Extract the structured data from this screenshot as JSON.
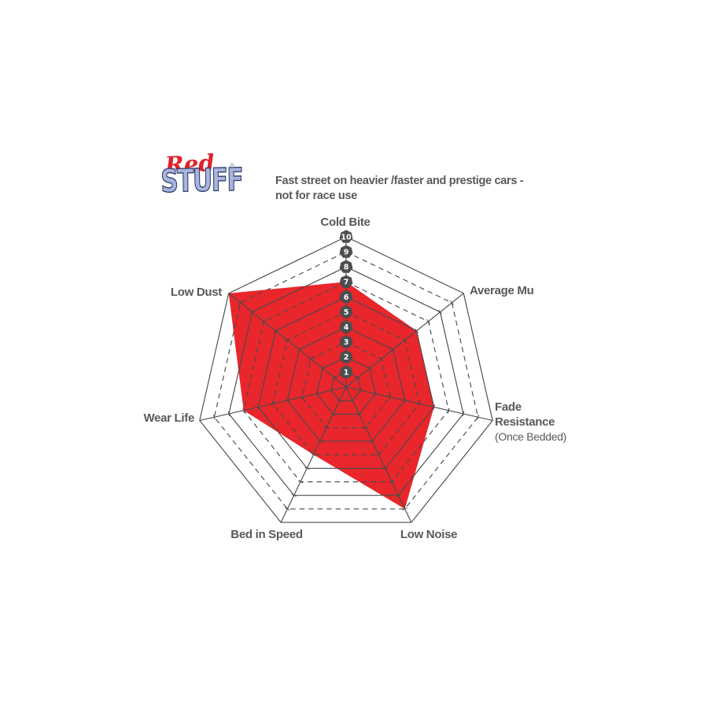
{
  "logo": {
    "word1": "Red",
    "registered": "®",
    "word2": "STUFF"
  },
  "header": {
    "tagline_line1": "Fast street on heavier /faster and prestige cars -",
    "tagline_line2": "not for race use"
  },
  "chart_data": {
    "type": "radar",
    "title": "RedStuff brake pad performance profile",
    "categories": [
      "Cold Bite",
      "Average Mu",
      "Fade Resistance (Once Bedded)",
      "Low Noise",
      "Bed in Speed",
      "Wear Life",
      "Low Dust"
    ],
    "values": [
      7,
      6,
      6,
      9,
      5,
      7,
      10
    ],
    "series": [
      {
        "name": "RedStuff",
        "values": [
          7,
          6,
          6,
          9,
          5,
          7,
          10
        ]
      }
    ],
    "scale": {
      "min": 1,
      "max": 10,
      "ticks": [
        "1",
        "2",
        "3",
        "4",
        "5",
        "6",
        "7",
        "8",
        "9",
        "10"
      ]
    },
    "axis_label_display": {
      "cold_bite": "Cold Bite",
      "average_mu": "Average Mu",
      "fade_1": "Fade",
      "fade_2": "Resistance",
      "fade_3": "(Once Bedded)",
      "low_noise": "Low Noise",
      "bed_in_speed": "Bed in Speed",
      "wear_life": "Wear Life",
      "low_dust": "Low Dust"
    },
    "style": {
      "series_fill": "#e8262b",
      "grid_line": "#4a4b4d",
      "badge_fill": "#4c4d4f",
      "badge_text": "#ffffff",
      "label_color": "#58595b"
    },
    "layout": {
      "axes_count": 7,
      "rings": 10,
      "dashed_rings": [
        3,
        5,
        7,
        9
      ],
      "legend": "none",
      "tick_badges_on": "vertical axis (Cold Bite)"
    }
  }
}
